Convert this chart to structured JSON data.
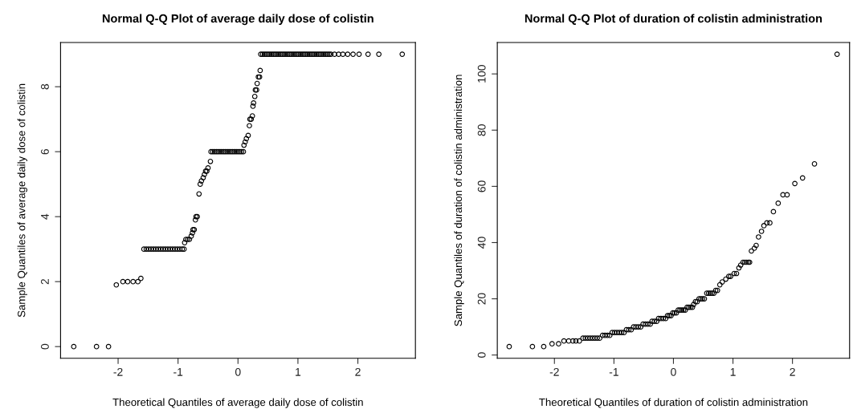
{
  "chart_data": [
    {
      "type": "scatter",
      "title": "Normal Q-Q Plot of average daily dose of colistin",
      "xlabel": "Theoretical Quantiles of average daily dose of colistin",
      "ylabel": "Sample Quantiles of average daily dose of colistin",
      "marker": "circle",
      "color": "#000000",
      "xlim": [
        -2.96,
        2.96
      ],
      "ylim": [
        -0.36,
        9.36
      ],
      "xticks": [
        -2,
        -1,
        0,
        1,
        2
      ],
      "yticks": [
        0,
        2,
        4,
        6,
        8
      ],
      "x": [
        -2.74,
        -2.36,
        -2.16,
        -2.03,
        -1.92,
        -1.84,
        -1.75,
        -1.67,
        -1.62,
        -1.57,
        -1.53,
        -1.49,
        -1.45,
        -1.41,
        -1.37,
        -1.33,
        -1.29,
        -1.25,
        -1.21,
        -1.17,
        -1.13,
        -1.09,
        -1.05,
        -1.01,
        -0.97,
        -0.93,
        -0.9,
        -0.89,
        -0.87,
        -0.84,
        -0.81,
        -0.78,
        -0.76,
        -0.75,
        -0.73,
        -0.71,
        -0.7,
        -0.68,
        -0.65,
        -0.63,
        -0.61,
        -0.58,
        -0.56,
        -0.54,
        -0.52,
        -0.5,
        -0.46,
        -0.45,
        -0.42,
        -0.39,
        -0.36,
        -0.33,
        -0.3,
        -0.27,
        -0.24,
        -0.21,
        -0.18,
        -0.15,
        -0.12,
        -0.09,
        -0.06,
        -0.03,
        0,
        0.03,
        0.06,
        0.09,
        0.1,
        0.12,
        0.14,
        0.17,
        0.19,
        0.2,
        0.22,
        0.24,
        0.25,
        0.26,
        0.28,
        0.29,
        0.31,
        0.32,
        0.34,
        0.36,
        0.37,
        0.38,
        0.41,
        0.44,
        0.47,
        0.5,
        0.53,
        0.56,
        0.59,
        0.62,
        0.65,
        0.68,
        0.71,
        0.74,
        0.77,
        0.8,
        0.83,
        0.86,
        0.89,
        0.92,
        0.95,
        0.98,
        1.01,
        1.04,
        1.07,
        1.1,
        1.13,
        1.16,
        1.19,
        1.22,
        1.25,
        1.28,
        1.31,
        1.34,
        1.37,
        1.4,
        1.43,
        1.46,
        1.49,
        1.52,
        1.55,
        1.61,
        1.68,
        1.75,
        1.83,
        1.92,
        2.02,
        2.17,
        2.35,
        2.74
      ],
      "values": [
        0,
        0,
        0,
        1.9,
        2,
        2,
        2,
        2,
        2.1,
        3,
        3,
        3,
        3,
        3,
        3,
        3,
        3,
        3,
        3,
        3,
        3,
        3,
        3,
        3,
        3,
        3,
        3,
        3.2,
        3.3,
        3.3,
        3.3,
        3.4,
        3.5,
        3.6,
        3.6,
        3.9,
        4,
        4,
        4.7,
        5,
        5.1,
        5.2,
        5.3,
        5.4,
        5.4,
        5.5,
        5.7,
        6,
        6,
        6,
        6,
        6,
        6,
        6,
        6,
        6,
        6,
        6,
        6,
        6,
        6,
        6,
        6,
        6,
        6,
        6,
        6.2,
        6.3,
        6.4,
        6.5,
        6.8,
        7,
        7,
        7.1,
        7.4,
        7.5,
        7.7,
        7.9,
        7.9,
        8.1,
        8.3,
        8.3,
        8.5,
        9,
        9,
        9,
        9,
        9,
        9,
        9,
        9,
        9,
        9,
        9,
        9,
        9,
        9,
        9,
        9,
        9,
        9,
        9,
        9,
        9,
        9,
        9,
        9,
        9,
        9,
        9,
        9,
        9,
        9,
        9,
        9,
        9,
        9,
        9,
        9,
        9,
        9,
        9,
        9,
        9,
        9,
        9,
        9,
        9,
        9,
        9,
        9,
        9
      ]
    },
    {
      "type": "scatter",
      "title": "Normal Q-Q Plot of duration of colistin administration",
      "xlabel": "Theoretical Quantiles of duration of colistin administration",
      "ylabel": "Sample Quantiles of duration of colistin administration",
      "marker": "circle",
      "color": "#000000",
      "xlim": [
        -2.96,
        2.96
      ],
      "ylim": [
        -1.16,
        111.16
      ],
      "xticks": [
        -2,
        -1,
        0,
        1,
        2
      ],
      "yticks": [
        0,
        20,
        40,
        60,
        80,
        100
      ],
      "x": [
        -2.76,
        -2.37,
        -2.18,
        -2.04,
        -1.93,
        -1.84,
        -1.76,
        -1.69,
        -1.64,
        -1.58,
        -1.52,
        -1.48,
        -1.44,
        -1.4,
        -1.36,
        -1.32,
        -1.28,
        -1.24,
        -1.19,
        -1.15,
        -1.11,
        -1.07,
        -1.03,
        -0.99,
        -0.95,
        -0.91,
        -0.87,
        -0.83,
        -0.79,
        -0.75,
        -0.71,
        -0.67,
        -0.63,
        -0.59,
        -0.55,
        -0.51,
        -0.47,
        -0.43,
        -0.39,
        -0.36,
        -0.32,
        -0.28,
        -0.25,
        -0.21,
        -0.17,
        -0.13,
        -0.1,
        -0.07,
        -0.04,
        -0.01,
        0.02,
        0.05,
        0.08,
        0.11,
        0.14,
        0.17,
        0.2,
        0.23,
        0.26,
        0.29,
        0.32,
        0.34,
        0.37,
        0.4,
        0.43,
        0.46,
        0.49,
        0.52,
        0.56,
        0.59,
        0.62,
        0.65,
        0.68,
        0.71,
        0.74,
        0.78,
        0.82,
        0.88,
        0.93,
        0.96,
        1.02,
        1.06,
        1.1,
        1.13,
        1.17,
        1.2,
        1.23,
        1.26,
        1.28,
        1.31,
        1.36,
        1.39,
        1.43,
        1.48,
        1.52,
        1.57,
        1.62,
        1.68,
        1.76,
        1.84,
        1.91,
        2.04,
        2.17,
        2.37,
        2.75
      ],
      "values": [
        3,
        3,
        3,
        4,
        4,
        5,
        5,
        5,
        5,
        5,
        6,
        6,
        6,
        6,
        6,
        6,
        6,
        6,
        7,
        7,
        7,
        7,
        8,
        8,
        8,
        8,
        8,
        8,
        9,
        9,
        9,
        10,
        10,
        10,
        10,
        11,
        11,
        11,
        11,
        12,
        12,
        12,
        13,
        13,
        13,
        13,
        14,
        14,
        14,
        15,
        15,
        15,
        16,
        16,
        16,
        16,
        16,
        17,
        17,
        17,
        17,
        18,
        19,
        19,
        20,
        20,
        20,
        20,
        22,
        22,
        22,
        22,
        22,
        23,
        23,
        25,
        26,
        27,
        28,
        28,
        29,
        29,
        31,
        32,
        33,
        33,
        33,
        33,
        33,
        37,
        38,
        39,
        42,
        44,
        46,
        47,
        47,
        51,
        54,
        57,
        57,
        61,
        63,
        68,
        107
      ]
    }
  ]
}
